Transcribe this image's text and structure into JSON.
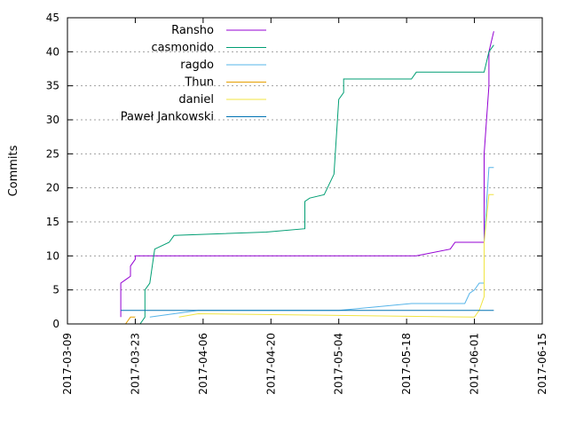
{
  "chart_data": {
    "type": "line",
    "title": "",
    "xlabel": "",
    "ylabel": "Commits",
    "ylim": [
      0,
      45
    ],
    "xlim": [
      "2017-03-09",
      "2017-06-15"
    ],
    "x_ticks": [
      "2017-03-09",
      "2017-03-23",
      "2017-04-06",
      "2017-04-20",
      "2017-05-04",
      "2017-05-18",
      "2017-06-01",
      "2017-06-15"
    ],
    "y_ticks": [
      0,
      5,
      10,
      15,
      20,
      25,
      30,
      35,
      40,
      45
    ],
    "grid": true,
    "legend_position": "top-left",
    "series": [
      {
        "name": "Ransho",
        "color": "#9400d3",
        "points": [
          [
            "2017-03-20",
            1
          ],
          [
            "2017-03-20",
            2
          ],
          [
            "2017-03-20",
            6
          ],
          [
            "2017-03-21",
            6.5
          ],
          [
            "2017-03-22",
            7
          ],
          [
            "2017-03-22",
            8.5
          ],
          [
            "2017-03-23",
            9.5
          ],
          [
            "2017-03-23",
            10
          ],
          [
            "2017-05-20",
            10
          ],
          [
            "2017-05-27",
            11
          ],
          [
            "2017-05-28",
            12
          ],
          [
            "2017-06-03",
            12
          ],
          [
            "2017-06-03",
            15
          ],
          [
            "2017-06-03",
            25
          ],
          [
            "2017-06-04",
            35
          ],
          [
            "2017-06-04",
            40
          ],
          [
            "2017-06-05",
            43
          ]
        ]
      },
      {
        "name": "casmonido",
        "color": "#009e73",
        "points": [
          [
            "2017-03-24",
            0
          ],
          [
            "2017-03-25",
            1
          ],
          [
            "2017-03-25",
            5
          ],
          [
            "2017-03-26",
            6
          ],
          [
            "2017-03-27",
            11
          ],
          [
            "2017-03-30",
            12
          ],
          [
            "2017-03-31",
            13
          ],
          [
            "2017-04-19",
            13.5
          ],
          [
            "2017-04-27",
            14
          ],
          [
            "2017-04-27",
            18
          ],
          [
            "2017-04-28",
            18.5
          ],
          [
            "2017-05-01",
            19
          ],
          [
            "2017-05-03",
            22
          ],
          [
            "2017-05-04",
            33
          ],
          [
            "2017-05-05",
            34
          ],
          [
            "2017-05-05",
            36
          ],
          [
            "2017-05-19",
            36
          ],
          [
            "2017-05-20",
            37
          ],
          [
            "2017-06-03",
            37
          ],
          [
            "2017-06-04",
            40
          ],
          [
            "2017-06-05",
            41
          ]
        ]
      },
      {
        "name": "ragdo",
        "color": "#56b4e9",
        "points": [
          [
            "2017-03-26",
            1
          ],
          [
            "2017-04-05",
            2
          ],
          [
            "2017-05-04",
            2
          ],
          [
            "2017-05-19",
            3
          ],
          [
            "2017-05-30",
            3
          ],
          [
            "2017-05-31",
            4.5
          ],
          [
            "2017-06-01",
            5
          ],
          [
            "2017-06-02",
            6
          ],
          [
            "2017-06-03",
            6
          ],
          [
            "2017-06-03",
            12
          ],
          [
            "2017-06-04",
            23
          ],
          [
            "2017-06-05",
            23
          ]
        ]
      },
      {
        "name": "Thun",
        "color": "#e69f00",
        "points": [
          [
            "2017-03-21",
            0
          ],
          [
            "2017-03-22",
            1
          ],
          [
            "2017-03-23",
            1
          ]
        ]
      },
      {
        "name": "daniel",
        "color": "#f0e442",
        "points": [
          [
            "2017-04-01",
            1
          ],
          [
            "2017-04-05",
            1.5
          ],
          [
            "2017-06-01",
            1
          ],
          [
            "2017-06-02",
            2
          ],
          [
            "2017-06-03",
            4
          ],
          [
            "2017-06-03",
            12
          ],
          [
            "2017-06-04",
            19
          ],
          [
            "2017-06-05",
            19
          ]
        ]
      },
      {
        "name": "Paweł Jankowski",
        "color": "#0072b2",
        "points": [
          [
            "2017-03-20",
            2
          ],
          [
            "2017-06-05",
            2
          ]
        ]
      }
    ]
  }
}
